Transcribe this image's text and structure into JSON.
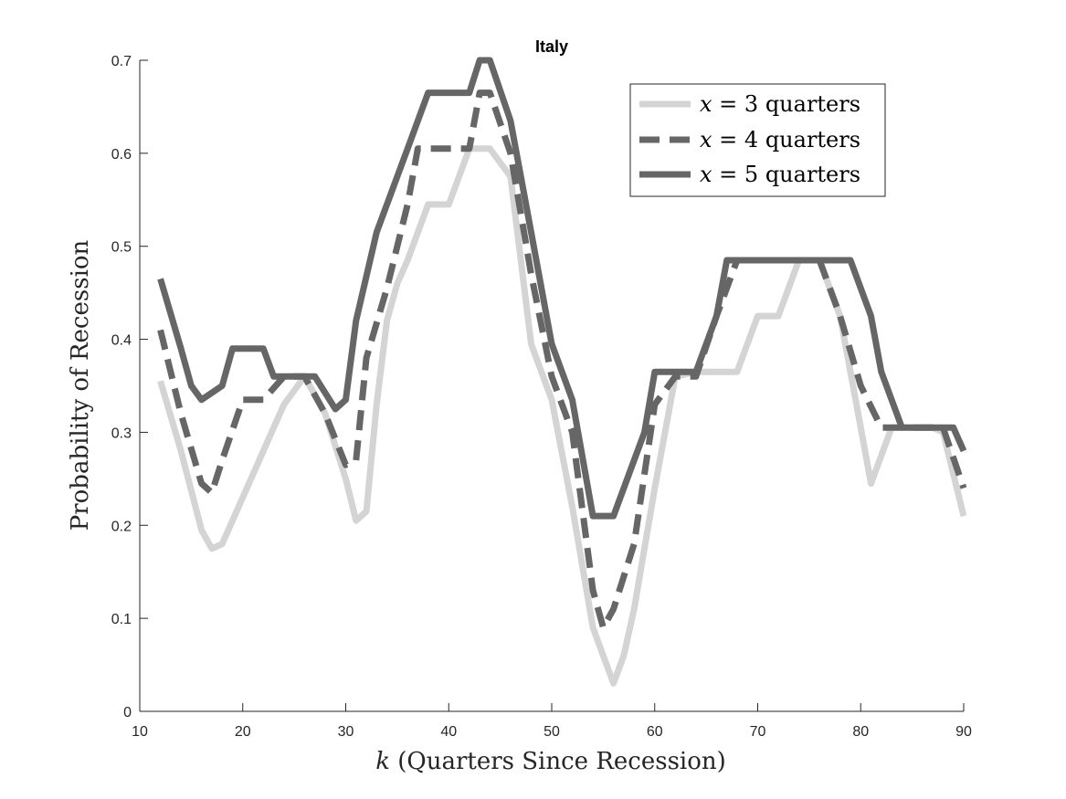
{
  "chart_data": {
    "type": "line",
    "title": "Italy",
    "xlabel_var": "k",
    "xlabel_rest": " (Quarters Since Recession)",
    "ylabel": "Probability of Recession",
    "xlim": [
      10,
      90
    ],
    "ylim": [
      0,
      0.7
    ],
    "xticks": [
      10,
      20,
      30,
      40,
      50,
      60,
      70,
      80,
      90
    ],
    "yticks": [
      0,
      0.1,
      0.2,
      0.3,
      0.4,
      0.5,
      0.6,
      0.7
    ],
    "xtick_labels": [
      "10",
      "20",
      "30",
      "40",
      "50",
      "60",
      "70",
      "80",
      "90"
    ],
    "ytick_labels": [
      "0",
      "0.1",
      "0.2",
      "0.3",
      "0.4",
      "0.5",
      "0.6",
      "0.7"
    ],
    "grid": false,
    "legend_position": "top-right",
    "series": [
      {
        "name": "x = 3 quarters",
        "legend_var": "x",
        "legend_eq": " = 3 quarters",
        "color": "#d4d4d4",
        "style": "solid",
        "x": [
          12,
          14,
          16,
          17,
          18,
          20,
          22,
          24,
          26,
          28,
          30,
          31,
          32,
          33,
          34,
          35,
          36,
          38,
          40,
          42,
          44,
          46,
          48,
          50,
          52,
          54,
          56,
          57,
          58,
          60,
          62,
          64,
          66,
          68,
          70,
          72,
          74,
          76,
          78,
          80,
          81,
          83,
          85,
          87,
          88,
          90
        ],
        "y": [
          0.355,
          0.28,
          0.195,
          0.175,
          0.18,
          0.23,
          0.28,
          0.33,
          0.36,
          0.32,
          0.25,
          0.205,
          0.215,
          0.33,
          0.42,
          0.46,
          0.485,
          0.545,
          0.545,
          0.605,
          0.605,
          0.575,
          0.395,
          0.335,
          0.22,
          0.09,
          0.03,
          0.06,
          0.11,
          0.24,
          0.36,
          0.365,
          0.365,
          0.365,
          0.425,
          0.425,
          0.485,
          0.485,
          0.425,
          0.305,
          0.245,
          0.305,
          0.305,
          0.305,
          0.3,
          0.21
        ]
      },
      {
        "name": "x = 4 quarters",
        "legend_var": "x",
        "legend_eq": " = 4 quarters",
        "color": "#666666",
        "style": "dashed",
        "x": [
          12,
          14,
          16,
          17,
          18,
          20,
          22,
          24,
          26,
          28,
          30,
          31,
          32,
          34,
          36,
          37,
          38,
          40,
          42,
          43,
          44,
          46,
          48,
          50,
          52,
          54,
          55,
          56,
          58,
          60,
          62,
          64,
          66,
          68,
          70,
          72,
          74,
          76,
          78,
          80,
          82,
          84,
          86,
          88,
          90
        ],
        "y": [
          0.41,
          0.32,
          0.245,
          0.235,
          0.27,
          0.335,
          0.335,
          0.36,
          0.36,
          0.32,
          0.265,
          0.27,
          0.38,
          0.455,
          0.545,
          0.605,
          0.605,
          0.605,
          0.605,
          0.665,
          0.665,
          0.6,
          0.47,
          0.36,
          0.3,
          0.13,
          0.09,
          0.11,
          0.18,
          0.33,
          0.36,
          0.36,
          0.425,
          0.485,
          0.485,
          0.485,
          0.485,
          0.485,
          0.425,
          0.35,
          0.305,
          0.305,
          0.305,
          0.305,
          0.24
        ]
      },
      {
        "name": "x = 5 quarters",
        "legend_var": "x",
        "legend_eq": " = 5 quarters",
        "color": "#666666",
        "style": "solid",
        "x": [
          12,
          14,
          15,
          16,
          18,
          19,
          20,
          22,
          23,
          24,
          26,
          27,
          29,
          30,
          31,
          33,
          35,
          36,
          38,
          40,
          42,
          43,
          44,
          46,
          48,
          50,
          52,
          54,
          55,
          56,
          58,
          59,
          60,
          62,
          63,
          64,
          66,
          67,
          68,
          70,
          72,
          74,
          76,
          78,
          79,
          81,
          82,
          84,
          86,
          88,
          89,
          90
        ],
        "y": [
          0.465,
          0.39,
          0.35,
          0.335,
          0.35,
          0.39,
          0.39,
          0.39,
          0.36,
          0.36,
          0.36,
          0.36,
          0.325,
          0.335,
          0.42,
          0.515,
          0.575,
          0.605,
          0.665,
          0.665,
          0.665,
          0.7,
          0.7,
          0.635,
          0.515,
          0.395,
          0.335,
          0.21,
          0.21,
          0.21,
          0.27,
          0.3,
          0.365,
          0.365,
          0.365,
          0.365,
          0.425,
          0.485,
          0.485,
          0.485,
          0.485,
          0.485,
          0.485,
          0.485,
          0.485,
          0.425,
          0.365,
          0.305,
          0.305,
          0.305,
          0.305,
          0.28
        ]
      }
    ]
  }
}
